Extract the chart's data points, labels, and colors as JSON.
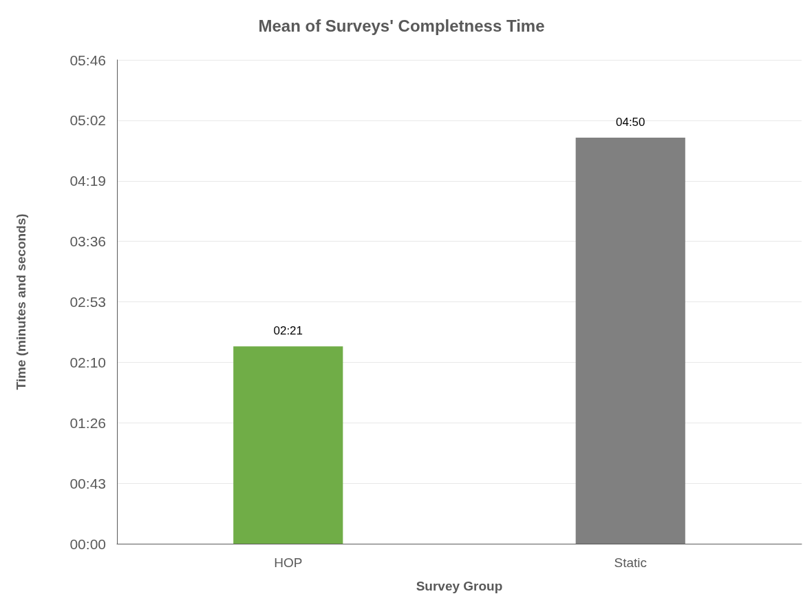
{
  "chart_data": {
    "type": "bar",
    "title": "Mean of Surveys' Completness Time",
    "xlabel": "Survey Group",
    "ylabel": "Time (minutes and seconds)",
    "categories": [
      "HOP",
      "Static"
    ],
    "values": [
      141,
      290
    ],
    "colors": [
      "#70ad47",
      "#808080"
    ],
    "value_labels": [
      "02:21",
      "04:50"
    ],
    "ylim": [
      0,
      345.6
    ],
    "yticks": [
      {
        "value": 0,
        "label": "00:00"
      },
      {
        "value": 43.2,
        "label": "00:43"
      },
      {
        "value": 86.4,
        "label": "01:26"
      },
      {
        "value": 129.6,
        "label": "02:10"
      },
      {
        "value": 172.8,
        "label": "02:53"
      },
      {
        "value": 216,
        "label": "03:36"
      },
      {
        "value": 259.2,
        "label": "04:19"
      },
      {
        "value": 302.4,
        "label": "05:02"
      },
      {
        "value": 345.6,
        "label": "05:46"
      }
    ],
    "grid": "y"
  }
}
